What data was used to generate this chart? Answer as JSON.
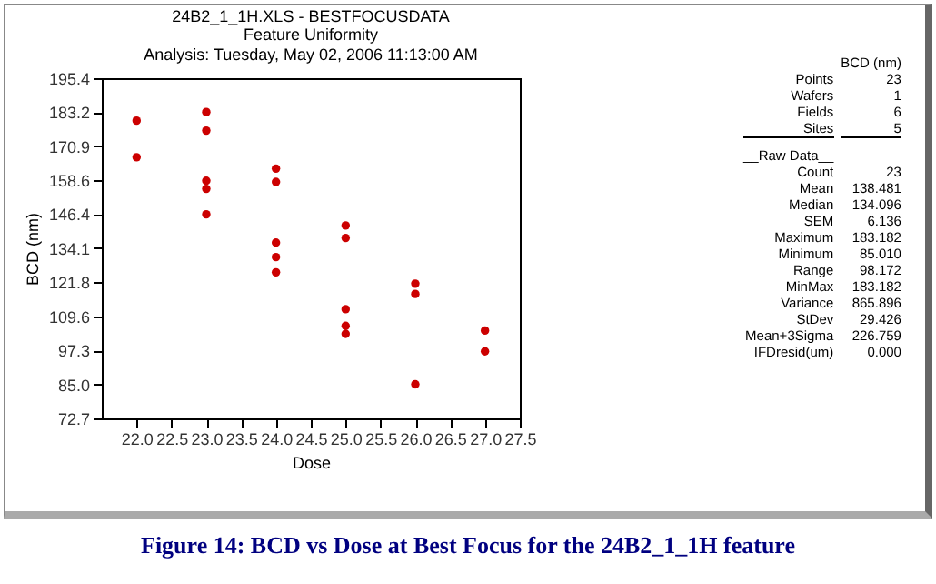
{
  "chart_data": {
    "type": "scatter",
    "title": "24B2_1_1H.XLS - BESTFOCUSDATA",
    "subtitle": "Feature Uniformity\nAnalysis: Tuesday, May 02, 2006 11:13:00 AM",
    "xlabel": "Dose",
    "ylabel": "BCD (nm)",
    "x": [
      22,
      22,
      23,
      23,
      23,
      23,
      23,
      24,
      24,
      24,
      24,
      24,
      25,
      25,
      25,
      25,
      25,
      26,
      26,
      26,
      27,
      27
    ],
    "series": [
      {
        "color": "#cc0000",
        "values": [
          180.1,
          166.9,
          183.2,
          176.5,
          158.4,
          155.5,
          146.3,
          162.8,
          158.0,
          136.1,
          130.9,
          125.4,
          142.3,
          137.8,
          112.1,
          106.1,
          103.2,
          121.3,
          117.6,
          85.0,
          104.4,
          96.9
        ]
      }
    ],
    "xlim": [
      21.5,
      27.5
    ],
    "xticks": [
      {
        "value": 22,
        "label": "22.0"
      },
      22.5,
      {
        "value": 23,
        "label": "23.0"
      },
      23.5,
      {
        "value": 24,
        "label": "24.0"
      },
      24.5,
      {
        "value": 25,
        "label": "25.0"
      },
      25.5,
      {
        "value": 26,
        "label": "26.0"
      },
      26.5,
      {
        "value": 27,
        "label": "27.0"
      },
      27.5
    ],
    "ylim": [
      72.7,
      195.4
    ],
    "yticks": [
      72.7,
      {
        "value": 85,
        "label": "85.0"
      },
      97.3,
      109.6,
      121.8,
      134.1,
      146.4,
      158.6,
      170.9,
      183.2,
      195.4
    ],
    "marker": "circle",
    "grid": false,
    "annotations": [
      "\tBCD (nm)",
      "Points\t23",
      "Wafers\t1",
      "Fields\t6",
      "Sites\t5",
      "__Raw Data__\t",
      "Count\t23",
      "Mean\t138.481",
      "Median\t134.096",
      "SEM\t6.136",
      "Maximum\t183.182",
      "Minimum\t85.010",
      "Range\t98.172",
      "MinMax\t183.182",
      "Variance\t865.896",
      "StDev\t29.426",
      "Mean+3Sigma\t226.759",
      "IFDresid(um)\t0.000",
      "Figure 14: BCD vs Dose at Best Focus for the 24B2_1_1H feature"
    ]
  }
}
